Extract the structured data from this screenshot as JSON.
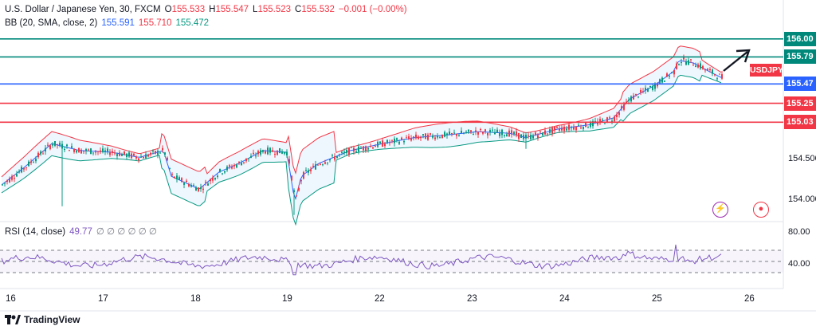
{
  "legend": {
    "symbol": "U.S. Dollar / Japanese Yen, 30, FXCM",
    "open_label": "O",
    "open": "155.533",
    "high_label": "H",
    "high": "155.547",
    "low_label": "L",
    "low": "155.523",
    "close_label": "C",
    "close": "155.532",
    "change": "−0.001 (−0.00%)",
    "bb_label": "BB (20, SMA, close, 2)",
    "bb_basis": "155.591",
    "bb_upper": "155.710",
    "bb_lower": "155.472",
    "rsi_label": "RSI (14, close)",
    "rsi_value": "49.77",
    "rsi_extra": "∅ ∅ ∅ ∅ ∅ ∅"
  },
  "badge": "USDJPY",
  "levels": [
    {
      "value": 156.0,
      "label": "156.00",
      "color": "#00897b"
    },
    {
      "value": 155.79,
      "label": "155.79",
      "color": "#00897b"
    },
    {
      "value": 155.475,
      "label": "155.47",
      "color": "#2962ff"
    },
    {
      "value": 155.25,
      "label": "155.25",
      "color": "#f23645"
    },
    {
      "value": 155.03,
      "label": "155.03",
      "color": "#f23645"
    }
  ],
  "y_ticks": [
    "154.500",
    "154.000"
  ],
  "rsi_ticks": [
    "80.00",
    "40.00"
  ],
  "x_ticks": [
    "16",
    "17",
    "18",
    "19",
    "22",
    "23",
    "24",
    "25",
    "26"
  ],
  "branding": "TradingView",
  "colors": {
    "up": "#089981",
    "down": "#f23645",
    "basis": "#2962ff",
    "fill": "#2196f3",
    "rsi": "#7e57c2"
  },
  "chart_data": {
    "type": "line",
    "title": "U.S. Dollar / Japanese Yen, 30, FXCM",
    "timeframe": "30",
    "price_close_path": [
      {
        "x": "16",
        "y": 154.2
      },
      {
        "x": "16.5",
        "y": 154.55
      },
      {
        "x": "17",
        "y": 154.7
      },
      {
        "x": "17.5",
        "y": 154.6
      },
      {
        "x": "18",
        "y": 154.25
      },
      {
        "x": "18.5",
        "y": 154.45
      },
      {
        "x": "19",
        "y": 154.65
      },
      {
        "x": "19.1",
        "y": 154.05
      },
      {
        "x": "19.5",
        "y": 154.6
      },
      {
        "x": "22",
        "y": 154.8
      },
      {
        "x": "22.5",
        "y": 154.9
      },
      {
        "x": "23",
        "y": 154.95
      },
      {
        "x": "23.5",
        "y": 154.92
      },
      {
        "x": "24",
        "y": 154.95
      },
      {
        "x": "24.5",
        "y": 155.1
      },
      {
        "x": "25",
        "y": 155.45
      },
      {
        "x": "25.2",
        "y": 155.7
      },
      {
        "x": "25.5",
        "y": 155.55
      }
    ],
    "ylim": [
      153.9,
      156.1
    ],
    "rsi_ylim": [
      30,
      90
    ],
    "rsi_lines": [
      70,
      50,
      30
    ]
  }
}
